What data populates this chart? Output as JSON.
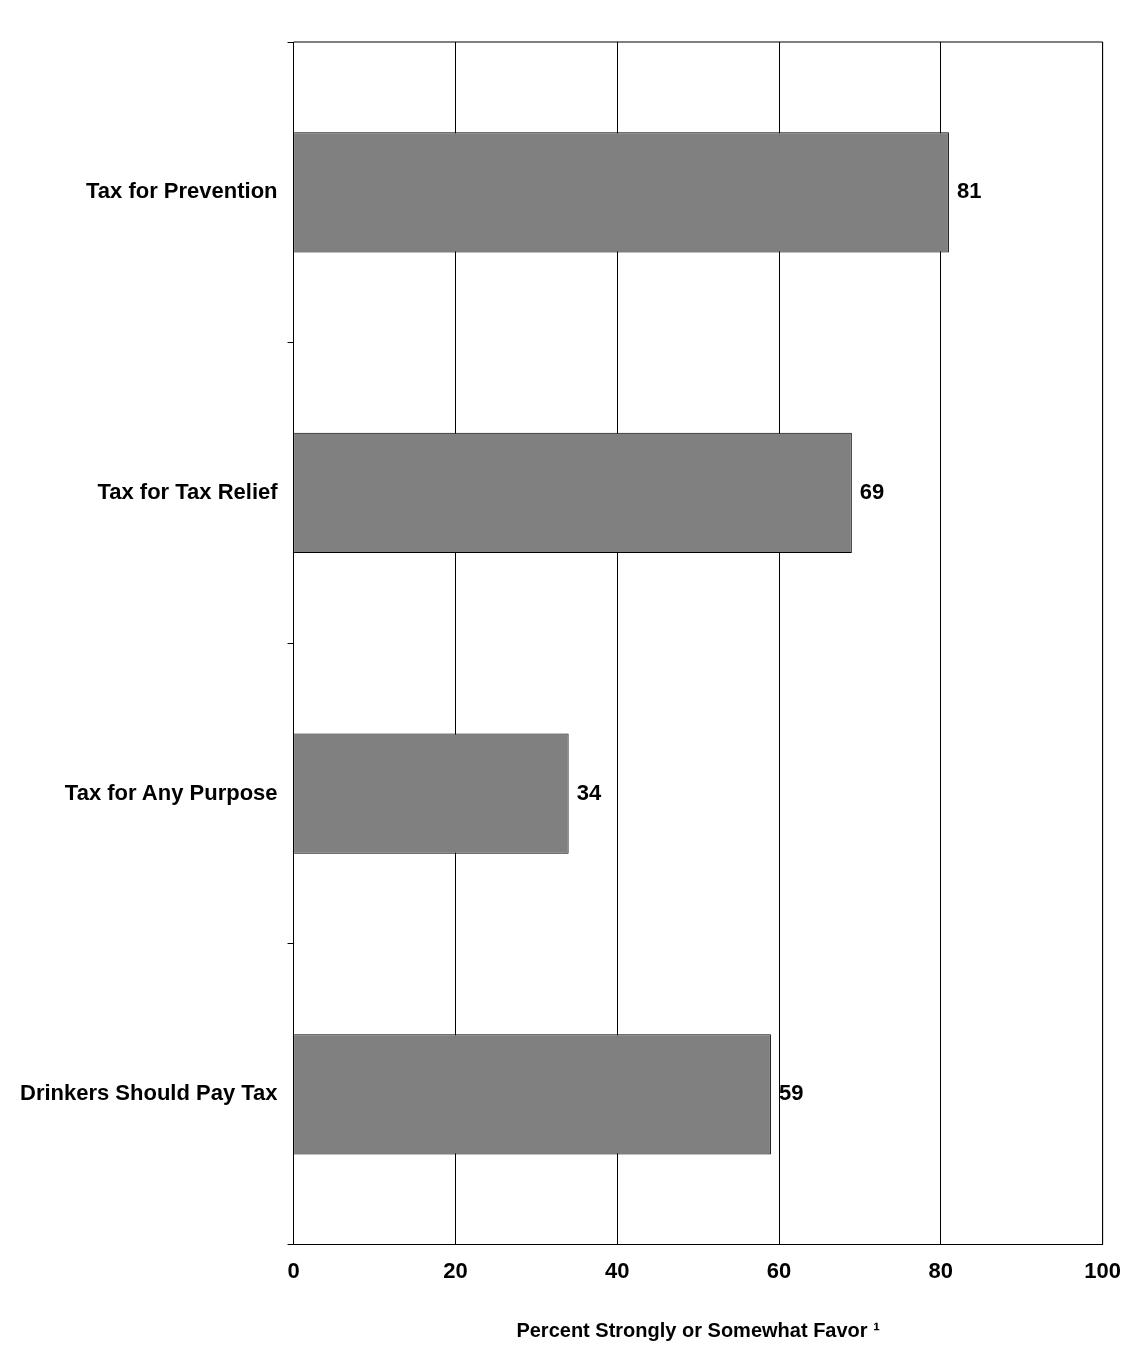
{
  "chart_data": {
    "type": "bar",
    "orientation": "horizontal",
    "categories": [
      "Tax for Prevention",
      "Tax for Tax Relief",
      "Tax for Any Purpose",
      "Drinkers Should Pay Tax"
    ],
    "values": [
      81,
      69,
      34,
      59
    ],
    "color": "#808080",
    "xlim": [
      0,
      100
    ],
    "xticks": [
      0,
      20,
      40,
      60,
      80,
      100
    ],
    "grid": "x",
    "data_labels": true,
    "legend": false,
    "xlabel": "Percent Strongly or Somewhat Favor ¹"
  }
}
